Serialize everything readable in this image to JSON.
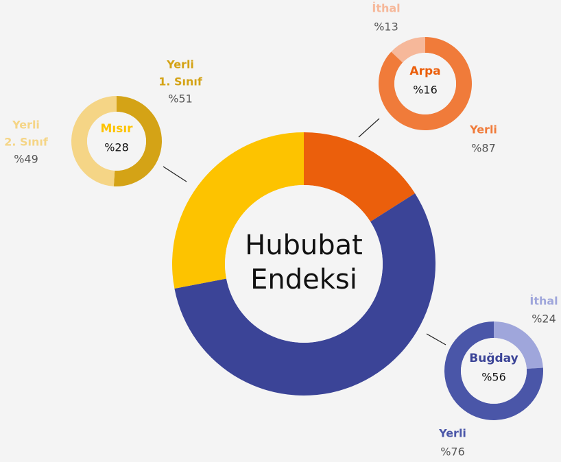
{
  "chart_data": [
    {
      "type": "donut",
      "title_lines": [
        "Hububat",
        "Endeksi"
      ],
      "categories": [
        "Arpa",
        "Buğday",
        "Mısır"
      ],
      "values": [
        16,
        56,
        28
      ],
      "value_labels": [
        "%16",
        "%56",
        "%28"
      ],
      "colors": [
        "#eb5f0c",
        "#3b4497",
        "#fdc300"
      ]
    },
    {
      "type": "donut",
      "categories": [
        [
          "Yerli",
          "1. Sınıf"
        ],
        [
          "Yerli",
          "2. Sınıf"
        ]
      ],
      "values": [
        51,
        49
      ],
      "value_labels": [
        "%51",
        "%49"
      ],
      "colors": [
        "#d4a316",
        "#f5d586"
      ]
    },
    {
      "type": "donut",
      "categories": [
        [
          "Yerli"
        ],
        [
          "İthal"
        ]
      ],
      "values": [
        87,
        13
      ],
      "value_labels": [
        "%87",
        "%13"
      ],
      "colors": [
        "#f07b3a",
        "#f6b89a"
      ]
    },
    {
      "type": "donut",
      "categories": [
        [
          "İthal"
        ],
        [
          "Yerli"
        ]
      ],
      "values": [
        24,
        76
      ],
      "value_labels": [
        "%24",
        "%76"
      ],
      "colors": [
        "#9fa6db",
        "#4a56a8"
      ]
    }
  ]
}
